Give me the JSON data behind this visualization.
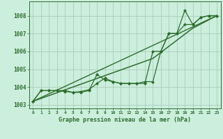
{
  "title": "Graphe pression niveau de la mer (hPa)",
  "background_color": "#cceedd",
  "grid_color": "#aaccbb",
  "line_color": "#2d6e2d",
  "xlim": [
    -0.5,
    23.5
  ],
  "ylim": [
    1002.8,
    1008.8
  ],
  "xtick_labels": [
    "0",
    "1",
    "2",
    "3",
    "4",
    "5",
    "6",
    "7",
    "8",
    "9",
    "10",
    "11",
    "12",
    "13",
    "14",
    "15",
    "16",
    "17",
    "18",
    "19",
    "20",
    "21",
    "22",
    "23"
  ],
  "xtick_pos": [
    0,
    1,
    2,
    3,
    4,
    5,
    6,
    7,
    8,
    9,
    10,
    11,
    12,
    13,
    14,
    15,
    16,
    17,
    18,
    19,
    20,
    21,
    22,
    23
  ],
  "yticks": [
    1003,
    1004,
    1005,
    1006,
    1007,
    1008
  ],
  "series": [
    {
      "x": [
        0,
        1,
        2,
        3,
        4,
        5,
        6,
        7,
        8,
        9,
        10,
        11,
        12,
        13,
        14,
        15,
        16,
        17,
        18,
        19,
        20,
        21,
        22,
        23
      ],
      "y": [
        1003.2,
        1003.8,
        1003.8,
        1003.8,
        1003.8,
        1003.7,
        1003.7,
        1003.8,
        1004.7,
        1004.4,
        1004.3,
        1004.2,
        1004.2,
        1004.2,
        1004.2,
        1006.0,
        1006.0,
        1007.0,
        1007.0,
        1008.3,
        1007.5,
        1007.9,
        1008.0,
        1008.0
      ],
      "marker": "D",
      "markersize": 2.0,
      "linewidth": 0.9
    },
    {
      "x": [
        0,
        1,
        2,
        3,
        4,
        5,
        6,
        7,
        8,
        9,
        10,
        11,
        12,
        13,
        14,
        15,
        16,
        17,
        18,
        19,
        20,
        21,
        22,
        23
      ],
      "y": [
        1003.2,
        1003.8,
        1003.8,
        1003.8,
        1003.75,
        1003.7,
        1003.75,
        1003.85,
        1004.2,
        1004.5,
        1004.3,
        1004.2,
        1004.2,
        1004.2,
        1004.3,
        1004.3,
        1006.0,
        1007.0,
        1007.0,
        1007.5,
        1007.5,
        1007.9,
        1008.0,
        1008.0
      ],
      "marker": "D",
      "markersize": 2.0,
      "linewidth": 0.9
    },
    {
      "x": [
        0,
        5,
        10,
        15,
        20,
        23
      ],
      "y": [
        1003.2,
        1004.0,
        1004.8,
        1005.6,
        1007.3,
        1008.0
      ],
      "marker": null,
      "markersize": 0,
      "linewidth": 1.1
    },
    {
      "x": [
        0,
        23
      ],
      "y": [
        1003.2,
        1008.0
      ],
      "marker": null,
      "markersize": 0,
      "linewidth": 1.0
    }
  ]
}
